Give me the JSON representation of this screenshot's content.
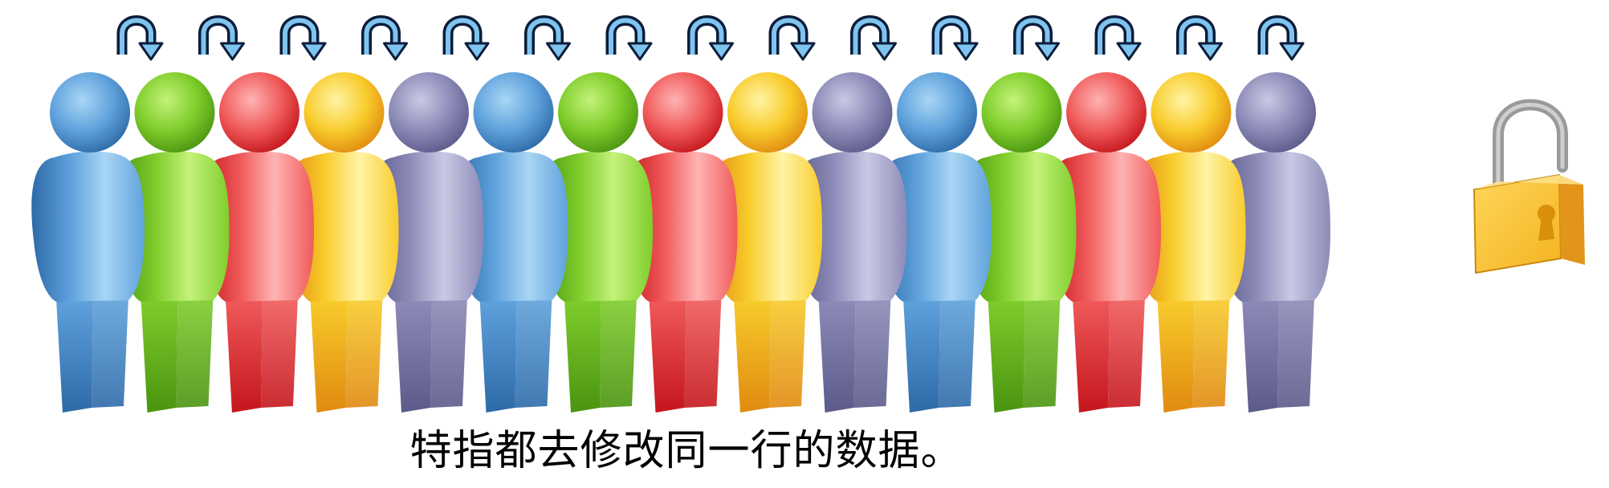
{
  "caption": "特指都去修改同一行的数据。",
  "figure_count": 15,
  "arrow_count": 15,
  "figure_colors": [
    "blue",
    "green",
    "red",
    "yellow",
    "purple",
    "blue",
    "green",
    "red",
    "yellow",
    "purple",
    "blue",
    "green",
    "red",
    "yellow",
    "purple"
  ],
  "palette": {
    "blue": {
      "light": "#a9d6f5",
      "mid": "#5fa2dc",
      "dark": "#2d6aa8"
    },
    "green": {
      "light": "#c4f27a",
      "mid": "#7fcd2c",
      "dark": "#4a9410"
    },
    "red": {
      "light": "#ffb3b3",
      "mid": "#f05a5a",
      "dark": "#c4161c"
    },
    "yellow": {
      "light": "#fff4a6",
      "mid": "#f8cc2c",
      "dark": "#e08a10"
    },
    "purple": {
      "light": "#c9c9e4",
      "mid": "#8d8bb8",
      "dark": "#5b5a8a"
    }
  },
  "arrow_colors": {
    "outline": "#0b1d3a",
    "fill": "#7fc4ee"
  },
  "lock": {
    "icon": "padlock-icon",
    "body_color": "#f4b321",
    "shackle_color": "#9a9a9a",
    "keyhole_color": "#d88f0c"
  }
}
